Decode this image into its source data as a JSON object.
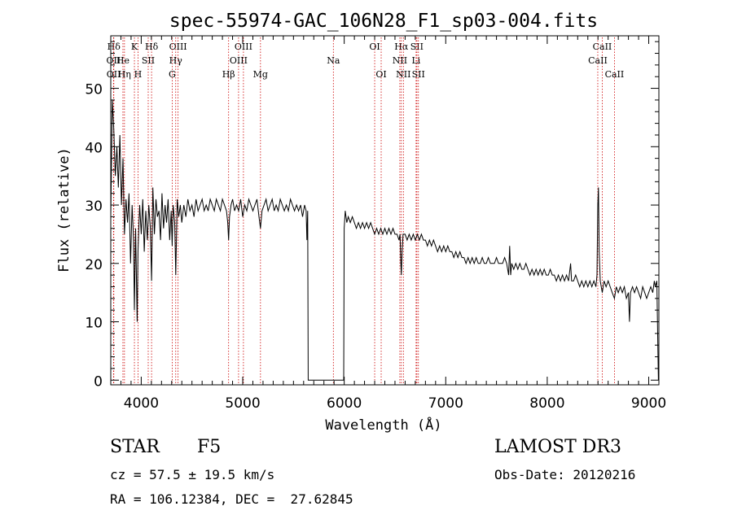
{
  "chart_data": {
    "type": "line",
    "title": "spec-55974-GAC_106N28_F1_sp03-004.fits",
    "xlabel": "Wavelength (Å)",
    "ylabel": "Flux (relative)",
    "xlim": [
      3700,
      9100
    ],
    "ylim": [
      -0.8,
      59
    ],
    "xticks": [
      4000,
      5000,
      6000,
      7000,
      8000,
      9000
    ],
    "yticks": [
      0,
      10,
      20,
      30,
      40,
      50
    ],
    "grid": false,
    "line_color": "#000000",
    "marker_color": "#cc0000",
    "lines": [
      {
        "label": "Hδ",
        "x": 3730,
        "row": 0
      },
      {
        "label": "OII",
        "x": 3727,
        "row": 1
      },
      {
        "label": "OII",
        "x": 3729,
        "row": 2
      },
      {
        "label": "He",
        "x": 3820,
        "row": 1
      },
      {
        "label": "Hη",
        "x": 3835,
        "row": 2
      },
      {
        "label": "K",
        "x": 3933,
        "row": 0
      },
      {
        "label": "SII",
        "x": 4069,
        "row": 1
      },
      {
        "label": "H",
        "x": 3968,
        "row": 2
      },
      {
        "label": "Hδ",
        "x": 4102,
        "row": 0
      },
      {
        "label": "OIII",
        "x": 4363,
        "row": 0
      },
      {
        "label": "Hγ",
        "x": 4340,
        "row": 1
      },
      {
        "label": "G",
        "x": 4305,
        "row": 2
      },
      {
        "label": "Hβ",
        "x": 4861,
        "row": 2
      },
      {
        "label": "OIII",
        "x": 5007,
        "row": 0
      },
      {
        "label": "OIII",
        "x": 4959,
        "row": 1
      },
      {
        "label": "Mg",
        "x": 5175,
        "row": 2
      },
      {
        "label": "Na",
        "x": 5893,
        "row": 1
      },
      {
        "label": "OI",
        "x": 6300,
        "row": 0
      },
      {
        "label": "OI",
        "x": 6364,
        "row": 2
      },
      {
        "label": "Hα",
        "x": 6563,
        "row": 0
      },
      {
        "label": "NII",
        "x": 6548,
        "row": 1
      },
      {
        "label": "NII",
        "x": 6583,
        "row": 2
      },
      {
        "label": "SII",
        "x": 6716,
        "row": 0
      },
      {
        "label": "Li",
        "x": 6708,
        "row": 1
      },
      {
        "label": "SII",
        "x": 6731,
        "row": 2
      },
      {
        "label": "CaII",
        "x": 8542,
        "row": 0
      },
      {
        "label": "CaII",
        "x": 8498,
        "row": 1
      },
      {
        "label": "CaII",
        "x": 8662,
        "row": 2
      }
    ],
    "spectrum": [
      [
        3700,
        28
      ],
      [
        3715,
        48
      ],
      [
        3730,
        43
      ],
      [
        3745,
        35
      ],
      [
        3760,
        40
      ],
      [
        3775,
        33
      ],
      [
        3790,
        42
      ],
      [
        3805,
        30
      ],
      [
        3820,
        38
      ],
      [
        3835,
        25
      ],
      [
        3850,
        31
      ],
      [
        3865,
        27
      ],
      [
        3880,
        32
      ],
      [
        3895,
        20
      ],
      [
        3910,
        30
      ],
      [
        3925,
        24
      ],
      [
        3933,
        12
      ],
      [
        3945,
        26
      ],
      [
        3960,
        10
      ],
      [
        3968,
        22
      ],
      [
        3985,
        30
      ],
      [
        4000,
        25
      ],
      [
        4015,
        31
      ],
      [
        4030,
        22
      ],
      [
        4045,
        29
      ],
      [
        4060,
        24
      ],
      [
        4075,
        30
      ],
      [
        4090,
        26
      ],
      [
        4102,
        17
      ],
      [
        4115,
        33
      ],
      [
        4130,
        25
      ],
      [
        4145,
        31
      ],
      [
        4160,
        28
      ],
      [
        4175,
        29
      ],
      [
        4190,
        24
      ],
      [
        4205,
        32
      ],
      [
        4220,
        26
      ],
      [
        4235,
        30
      ],
      [
        4250,
        27
      ],
      [
        4265,
        31
      ],
      [
        4280,
        24
      ],
      [
        4295,
        29
      ],
      [
        4305,
        23
      ],
      [
        4315,
        30
      ],
      [
        4330,
        27
      ],
      [
        4340,
        18
      ],
      [
        4355,
        31
      ],
      [
        4370,
        28
      ],
      [
        4385,
        30
      ],
      [
        4400,
        27
      ],
      [
        4420,
        30
      ],
      [
        4440,
        28
      ],
      [
        4460,
        31
      ],
      [
        4480,
        29
      ],
      [
        4500,
        30
      ],
      [
        4520,
        28
      ],
      [
        4540,
        31
      ],
      [
        4560,
        29
      ],
      [
        4580,
        30
      ],
      [
        4600,
        31
      ],
      [
        4620,
        29
      ],
      [
        4640,
        30
      ],
      [
        4660,
        29
      ],
      [
        4680,
        31
      ],
      [
        4700,
        30
      ],
      [
        4720,
        29
      ],
      [
        4740,
        31
      ],
      [
        4760,
        30
      ],
      [
        4780,
        29
      ],
      [
        4800,
        31
      ],
      [
        4820,
        30
      ],
      [
        4840,
        29
      ],
      [
        4852,
        27
      ],
      [
        4861,
        24
      ],
      [
        4870,
        28
      ],
      [
        4885,
        30
      ],
      [
        4900,
        31
      ],
      [
        4920,
        29
      ],
      [
        4940,
        30
      ],
      [
        4960,
        29
      ],
      [
        4980,
        31
      ],
      [
        5000,
        28
      ],
      [
        5020,
        30
      ],
      [
        5040,
        29
      ],
      [
        5060,
        31
      ],
      [
        5080,
        30
      ],
      [
        5100,
        29
      ],
      [
        5120,
        30
      ],
      [
        5140,
        31
      ],
      [
        5160,
        28
      ],
      [
        5175,
        26
      ],
      [
        5190,
        29
      ],
      [
        5210,
        30
      ],
      [
        5230,
        31
      ],
      [
        5250,
        29
      ],
      [
        5270,
        30
      ],
      [
        5290,
        31
      ],
      [
        5310,
        29
      ],
      [
        5330,
        30
      ],
      [
        5350,
        29
      ],
      [
        5370,
        31
      ],
      [
        5390,
        30
      ],
      [
        5410,
        29
      ],
      [
        5430,
        30
      ],
      [
        5450,
        29
      ],
      [
        5470,
        31
      ],
      [
        5490,
        30
      ],
      [
        5510,
        29
      ],
      [
        5530,
        30
      ],
      [
        5550,
        29
      ],
      [
        5570,
        30
      ],
      [
        5590,
        28
      ],
      [
        5610,
        30
      ],
      [
        5625,
        29
      ],
      [
        5632,
        24
      ],
      [
        5640,
        29
      ],
      [
        5645,
        0
      ],
      [
        5990,
        0
      ],
      [
        5995,
        0
      ],
      [
        6000,
        26
      ],
      [
        6010,
        29
      ],
      [
        6025,
        27
      ],
      [
        6040,
        28
      ],
      [
        6060,
        27
      ],
      [
        6080,
        28
      ],
      [
        6100,
        27
      ],
      [
        6120,
        26
      ],
      [
        6140,
        27
      ],
      [
        6160,
        26
      ],
      [
        6180,
        27
      ],
      [
        6200,
        26
      ],
      [
        6220,
        27
      ],
      [
        6240,
        26
      ],
      [
        6260,
        27
      ],
      [
        6280,
        26
      ],
      [
        6300,
        25
      ],
      [
        6320,
        26
      ],
      [
        6340,
        25
      ],
      [
        6360,
        26
      ],
      [
        6380,
        25
      ],
      [
        6400,
        26
      ],
      [
        6420,
        25
      ],
      [
        6440,
        26
      ],
      [
        6460,
        25
      ],
      [
        6480,
        26
      ],
      [
        6500,
        25
      ],
      [
        6520,
        25
      ],
      [
        6540,
        24
      ],
      [
        6550,
        25
      ],
      [
        6556,
        21
      ],
      [
        6563,
        18
      ],
      [
        6570,
        22
      ],
      [
        6580,
        25
      ],
      [
        6600,
        25
      ],
      [
        6620,
        24
      ],
      [
        6640,
        25
      ],
      [
        6660,
        24
      ],
      [
        6680,
        25
      ],
      [
        6700,
        24
      ],
      [
        6720,
        25
      ],
      [
        6740,
        24
      ],
      [
        6760,
        25
      ],
      [
        6780,
        24
      ],
      [
        6800,
        24
      ],
      [
        6820,
        23
      ],
      [
        6840,
        24
      ],
      [
        6860,
        23
      ],
      [
        6880,
        24
      ],
      [
        6900,
        23
      ],
      [
        6920,
        22
      ],
      [
        6940,
        23
      ],
      [
        6960,
        22
      ],
      [
        6980,
        23
      ],
      [
        7000,
        22
      ],
      [
        7020,
        23
      ],
      [
        7040,
        22
      ],
      [
        7060,
        22
      ],
      [
        7080,
        21
      ],
      [
        7100,
        22
      ],
      [
        7120,
        21
      ],
      [
        7140,
        22
      ],
      [
        7160,
        21
      ],
      [
        7180,
        21
      ],
      [
        7200,
        20
      ],
      [
        7220,
        21
      ],
      [
        7240,
        20
      ],
      [
        7260,
        21
      ],
      [
        7280,
        20
      ],
      [
        7300,
        21
      ],
      [
        7320,
        20
      ],
      [
        7340,
        20
      ],
      [
        7360,
        21
      ],
      [
        7380,
        20
      ],
      [
        7400,
        20
      ],
      [
        7420,
        21
      ],
      [
        7440,
        20
      ],
      [
        7460,
        20
      ],
      [
        7480,
        20
      ],
      [
        7500,
        21
      ],
      [
        7520,
        20
      ],
      [
        7540,
        20
      ],
      [
        7560,
        20
      ],
      [
        7580,
        21
      ],
      [
        7600,
        20
      ],
      [
        7620,
        18
      ],
      [
        7630,
        23
      ],
      [
        7640,
        18
      ],
      [
        7650,
        20
      ],
      [
        7670,
        19
      ],
      [
        7690,
        20
      ],
      [
        7710,
        19
      ],
      [
        7730,
        20
      ],
      [
        7750,
        19
      ],
      [
        7770,
        19
      ],
      [
        7790,
        20
      ],
      [
        7810,
        19
      ],
      [
        7830,
        18
      ],
      [
        7850,
        19
      ],
      [
        7870,
        18
      ],
      [
        7890,
        19
      ],
      [
        7910,
        18
      ],
      [
        7930,
        19
      ],
      [
        7950,
        18
      ],
      [
        7970,
        19
      ],
      [
        7990,
        18
      ],
      [
        8010,
        18
      ],
      [
        8030,
        19
      ],
      [
        8050,
        18
      ],
      [
        8070,
        18
      ],
      [
        8090,
        17
      ],
      [
        8110,
        18
      ],
      [
        8130,
        17
      ],
      [
        8150,
        18
      ],
      [
        8170,
        17
      ],
      [
        8190,
        18
      ],
      [
        8210,
        17
      ],
      [
        8230,
        20
      ],
      [
        8240,
        17
      ],
      [
        8260,
        17
      ],
      [
        8280,
        18
      ],
      [
        8300,
        17
      ],
      [
        8320,
        16
      ],
      [
        8340,
        17
      ],
      [
        8360,
        16
      ],
      [
        8380,
        17
      ],
      [
        8400,
        16
      ],
      [
        8420,
        17
      ],
      [
        8440,
        16
      ],
      [
        8460,
        17
      ],
      [
        8480,
        16
      ],
      [
        8490,
        18
      ],
      [
        8498,
        30
      ],
      [
        8505,
        33
      ],
      [
        8512,
        22
      ],
      [
        8522,
        17
      ],
      [
        8542,
        15
      ],
      [
        8560,
        17
      ],
      [
        8580,
        16
      ],
      [
        8600,
        17
      ],
      [
        8620,
        16
      ],
      [
        8640,
        15
      ],
      [
        8662,
        14
      ],
      [
        8680,
        16
      ],
      [
        8700,
        15
      ],
      [
        8720,
        16
      ],
      [
        8740,
        15
      ],
      [
        8760,
        16
      ],
      [
        8780,
        14
      ],
      [
        8800,
        15
      ],
      [
        8810,
        10
      ],
      [
        8820,
        15
      ],
      [
        8840,
        16
      ],
      [
        8860,
        15
      ],
      [
        8880,
        16
      ],
      [
        8900,
        15
      ],
      [
        8920,
        14
      ],
      [
        8940,
        16
      ],
      [
        8960,
        15
      ],
      [
        8980,
        14
      ],
      [
        9000,
        15
      ],
      [
        9020,
        16
      ],
      [
        9040,
        15
      ],
      [
        9055,
        17
      ],
      [
        9065,
        16
      ],
      [
        9080,
        17
      ],
      [
        9090,
        5
      ],
      [
        9095,
        0
      ]
    ]
  },
  "info": {
    "obj_class": "STAR",
    "obj_subclass": "F5",
    "survey": "LAMOST DR3",
    "cz": "cz = 57.5 ± 19.5 km/s",
    "obs_date": "Obs-Date: 20120216",
    "radec": "RA = 106.12384, DEC =  27.62845"
  }
}
